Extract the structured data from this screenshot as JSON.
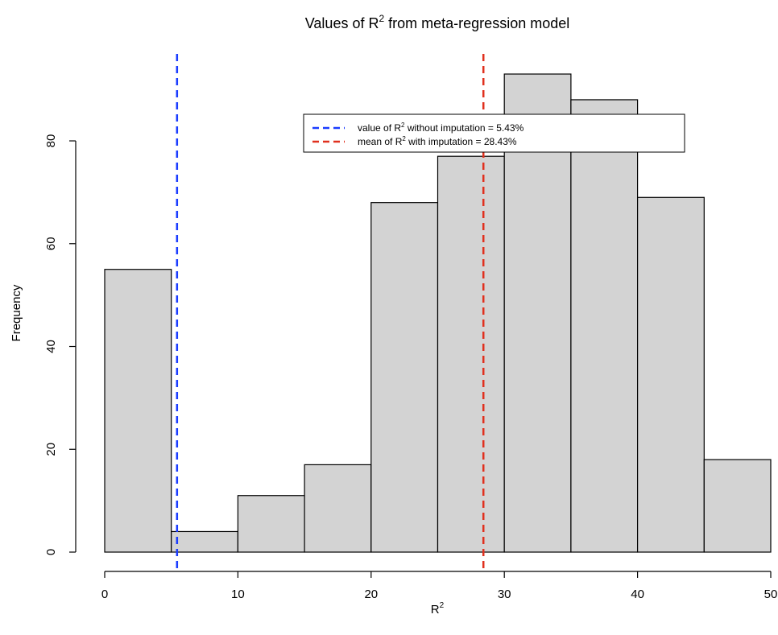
{
  "chart_data": {
    "type": "bar",
    "title": {
      "prefix": "Values of R",
      "superscript": "2",
      "suffix": " from meta-regression model"
    },
    "xlabel": {
      "base": "R",
      "superscript": "2"
    },
    "ylabel": "Frequency",
    "bins": [
      {
        "from": 0,
        "to": 5,
        "count": 55
      },
      {
        "from": 5,
        "to": 10,
        "count": 4
      },
      {
        "from": 10,
        "to": 15,
        "count": 11
      },
      {
        "from": 15,
        "to": 20,
        "count": 17
      },
      {
        "from": 20,
        "to": 25,
        "count": 68
      },
      {
        "from": 25,
        "to": 30,
        "count": 77
      },
      {
        "from": 30,
        "to": 35,
        "count": 93
      },
      {
        "from": 35,
        "to": 40,
        "count": 88
      },
      {
        "from": 40,
        "to": 45,
        "count": 69
      },
      {
        "from": 45,
        "to": 50,
        "count": 18
      }
    ],
    "xlim": [
      0,
      50
    ],
    "ylim": [
      0,
      93
    ],
    "xticks": [
      0,
      10,
      20,
      30,
      40,
      50
    ],
    "yticks": [
      0,
      20,
      40,
      60,
      80
    ],
    "bar_fill": "#d3d3d3",
    "bar_stroke": "#000000",
    "reference_lines": [
      {
        "x": 5.43,
        "color": "#1a3cff",
        "style": "dashed"
      },
      {
        "x": 28.43,
        "color": "#e0301e",
        "style": "dashed"
      }
    ],
    "legend": {
      "placement": "top-center",
      "entries": [
        {
          "prefix": "value of R",
          "superscript": "2",
          "suffix": " without imputation = 5.43%",
          "color": "#1a3cff"
        },
        {
          "prefix": "mean of R",
          "superscript": "2",
          "suffix": " with imputation = 28.43%",
          "color": "#e0301e"
        }
      ]
    },
    "grid": false
  }
}
